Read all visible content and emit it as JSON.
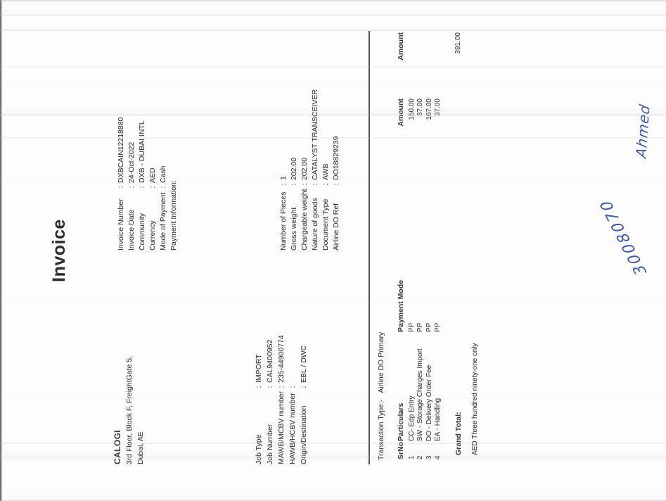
{
  "page": {
    "title": "Invoice"
  },
  "colors": {
    "ink": "#3e3e42",
    "paper": "#fdfdfe",
    "rule": "#3b3b3f",
    "handwriting_ink": "#4058ac"
  },
  "seller": {
    "name": "CALOGI",
    "address_line1": "3rd Floor, Block F, FreightGate 5,",
    "address_line2": "Dubai, AE"
  },
  "invoice_meta": [
    {
      "label": "Invoice Number",
      "sep": ":",
      "value": "DXBCAIN12218880"
    },
    {
      "label": "Invoice Date",
      "sep": ":",
      "value": "24-Oct-2022"
    },
    {
      "label": "Community",
      "sep": ":",
      "value": "DXB - DUBAI INTL"
    },
    {
      "label": "Currency",
      "sep": ":",
      "value": "AED"
    },
    {
      "label": "Mode of Payment",
      "sep": ":",
      "value": "Cash"
    },
    {
      "label": "Payment Information:",
      "sep": "",
      "value": ""
    }
  ],
  "job_details": [
    {
      "label": "Job Type",
      "sep": ":",
      "value": "IMPORT"
    },
    {
      "label": "Job Number",
      "sep": ":",
      "value": "CAL9400952"
    },
    {
      "label": "MAWB/MCBV number",
      "sep": ":",
      "value": "235-44900774"
    },
    {
      "label": "HAWB/HCBV number",
      "sep": ":",
      "value": ""
    },
    {
      "label": "Origin/Destination",
      "sep": ":",
      "value": "EBL / DWC"
    }
  ],
  "shipment_details": [
    {
      "label": "Number of Pieces",
      "sep": ":",
      "value": "1"
    },
    {
      "label": "Gross weight",
      "sep": ":",
      "value": "202.00"
    },
    {
      "label": "Chargeable weight",
      "sep": ":",
      "value": "202.00"
    },
    {
      "label": "Nature of goods",
      "sep": ":",
      "value": "CATALYST TRANSCEIVER"
    },
    {
      "label": "Document Type",
      "sep": ":",
      "value": "AWB"
    },
    {
      "label": "Airline DO Ref",
      "sep": ":",
      "value": "DO18829239"
    }
  ],
  "transaction": {
    "label": "Transaction Type:-",
    "value": "Airline DO Primary"
  },
  "charges_table": {
    "headers": {
      "srno": "SrNo",
      "particulars": "Particulars",
      "payment_mode": "Payment Mode",
      "amount": "Amount",
      "amount_total": "Amount"
    },
    "rows": [
      {
        "srno": "1",
        "particulars": "CC- Edp Entry",
        "payment_mode": "PP",
        "amount": "150.00"
      },
      {
        "srno": "2",
        "particulars": "SW - Storage Charges Import",
        "payment_mode": "PP",
        "amount": "37.00"
      },
      {
        "srno": "3",
        "particulars": "DO - Delivery Order Fee",
        "payment_mode": "PP",
        "amount": "167.00"
      },
      {
        "srno": "4",
        "particulars": "EA - Handling",
        "payment_mode": "PP",
        "amount": "37.00"
      }
    ]
  },
  "totals": {
    "grand_total_label": "Grand Total:",
    "grand_total_amount": "391.00",
    "amount_in_words": "AED Three hundred ninety-one only"
  },
  "handwriting": {
    "number": "3008070",
    "name": "Ahmed"
  }
}
